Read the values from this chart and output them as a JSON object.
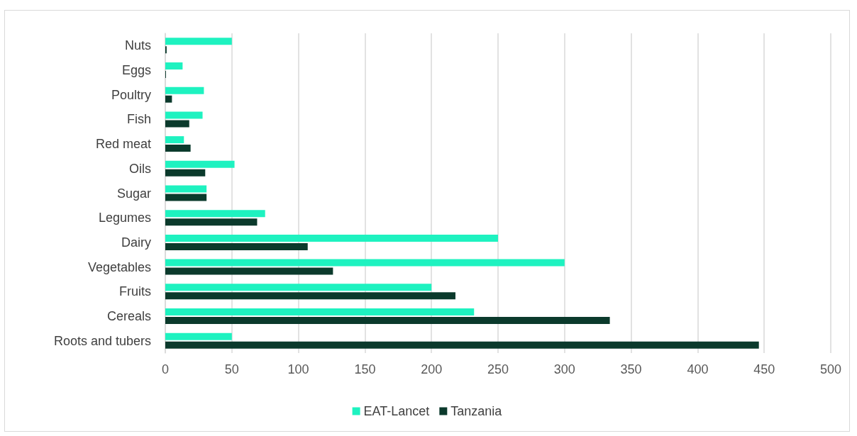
{
  "chart_data": {
    "type": "bar",
    "orientation": "horizontal",
    "categories": [
      "Nuts",
      "Eggs",
      "Poultry",
      "Fish",
      "Red meat",
      "Oils",
      "Sugar",
      "Legumes",
      "Dairy",
      "Vegetables",
      "Fruits",
      "Cereals",
      "Roots and tubers"
    ],
    "series": [
      {
        "name": "EAT-Lancet",
        "color": "#1ef2c0",
        "values": [
          50,
          13,
          29,
          28,
          14,
          52,
          31,
          75,
          250,
          300,
          200,
          232,
          50
        ]
      },
      {
        "name": "Tanzania",
        "color": "#0b3a2c",
        "values": [
          1,
          0.5,
          5,
          18,
          19,
          30,
          31,
          69,
          107,
          126,
          218,
          334,
          446
        ]
      }
    ],
    "xlim": [
      0,
      500
    ],
    "xticks": [
      0,
      50,
      100,
      150,
      200,
      250,
      300,
      350,
      400,
      450,
      500
    ],
    "grid": "x",
    "legend": "bottom"
  }
}
